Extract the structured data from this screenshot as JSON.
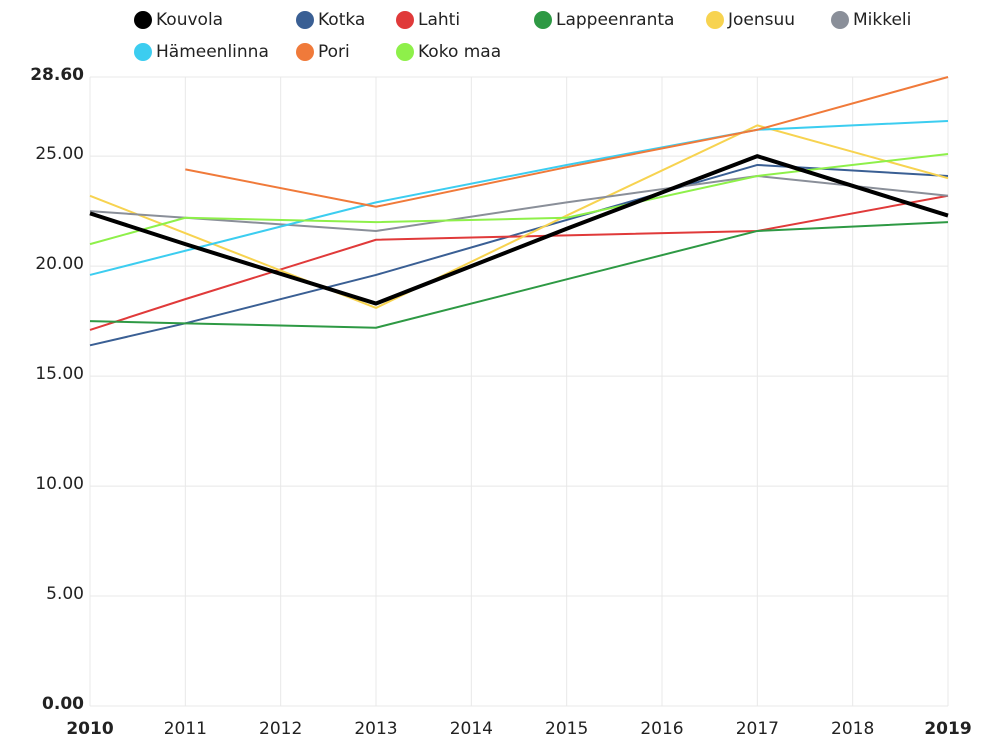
{
  "chart_data": {
    "type": "line",
    "x": [
      2010,
      2011,
      2013,
      2015,
      2017,
      2019
    ],
    "series": [
      {
        "name": "Kouvola",
        "color": "#000000",
        "values": [
          22.4,
          21.0,
          18.3,
          21.7,
          25.0,
          22.3
        ]
      },
      {
        "name": "Kotka",
        "color": "#3a5f94",
        "values": [
          16.4,
          17.4,
          19.6,
          22.1,
          24.6,
          24.1
        ]
      },
      {
        "name": "Lahti",
        "color": "#e03a3a",
        "values": [
          17.1,
          18.5,
          21.2,
          21.4,
          21.6,
          23.2
        ]
      },
      {
        "name": "Lappeenranta",
        "color": "#2e9944",
        "values": [
          17.5,
          17.4,
          17.2,
          19.4,
          21.6,
          22.0
        ]
      },
      {
        "name": "Joensuu",
        "color": "#f7d350",
        "values": [
          23.2,
          21.5,
          18.1,
          22.3,
          26.4,
          24.0
        ]
      },
      {
        "name": "Mikkeli",
        "color": "#8a8f99",
        "values": [
          22.5,
          22.2,
          21.6,
          22.9,
          24.1,
          23.2
        ]
      },
      {
        "name": "Hämeenlinna",
        "color": "#3ccdf0",
        "values": [
          19.6,
          20.7,
          22.9,
          24.6,
          26.2,
          26.6
        ]
      },
      {
        "name": "Pori",
        "color": "#f07a3a",
        "values": [
          null,
          24.4,
          22.7,
          24.5,
          26.2,
          28.6
        ]
      },
      {
        "name": "Koko maa",
        "color": "#8ef04a",
        "values": [
          21.0,
          22.2,
          22.0,
          22.2,
          24.1,
          25.1
        ]
      }
    ],
    "xlim": [
      2010,
      2019
    ],
    "xticks": [
      2010,
      2011,
      2012,
      2013,
      2014,
      2015,
      2016,
      2017,
      2018,
      2019
    ],
    "ylim": [
      0,
      28.6
    ],
    "yticks": [
      {
        "value": 0,
        "label": "0.00"
      },
      {
        "value": 5,
        "label": "5.00"
      },
      {
        "value": 10,
        "label": "10.00"
      },
      {
        "value": 15,
        "label": "15.00"
      },
      {
        "value": 20,
        "label": "20.00"
      },
      {
        "value": 25,
        "label": "25.00"
      },
      {
        "value": 28.6,
        "label": "28.60"
      }
    ],
    "grid": true
  }
}
